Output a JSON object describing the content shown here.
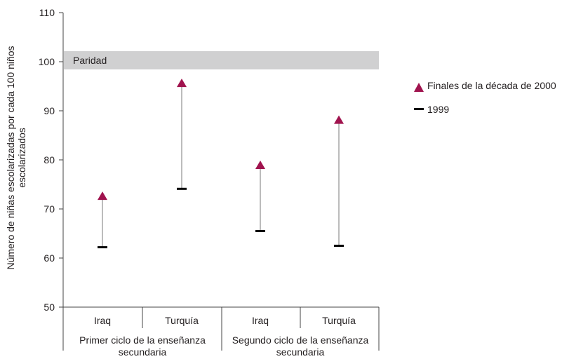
{
  "chart_data": {
    "type": "dot-range",
    "ylabel_lines": [
      "Número de niñas escolarizadas por cada 100 niños",
      "escolarizados"
    ],
    "ylim": [
      50,
      110
    ],
    "yticks": [
      50,
      60,
      70,
      80,
      90,
      100,
      110
    ],
    "parity": {
      "label": "Paridad",
      "from": 98.5,
      "to": 102.5
    },
    "groups": [
      {
        "label_lines": [
          "Primer ciclo de la enseñanza",
          "secundaria"
        ],
        "categories": [
          "Iraq",
          "Turquía"
        ]
      },
      {
        "label_lines": [
          "Segundo ciclo de la enseñanza",
          "secundaria"
        ],
        "categories": [
          "Iraq",
          "Turquía"
        ]
      }
    ],
    "series": [
      {
        "name": "Finales de la década de 2000",
        "marker": "triangle",
        "color": "#a0134e",
        "values": [
          72.7,
          95.7,
          79.0,
          88.2
        ]
      },
      {
        "name": "1999",
        "marker": "dash",
        "color": "#000000",
        "values": [
          62.2,
          74.1,
          65.5,
          62.5
        ]
      }
    ],
    "legend": "right"
  }
}
